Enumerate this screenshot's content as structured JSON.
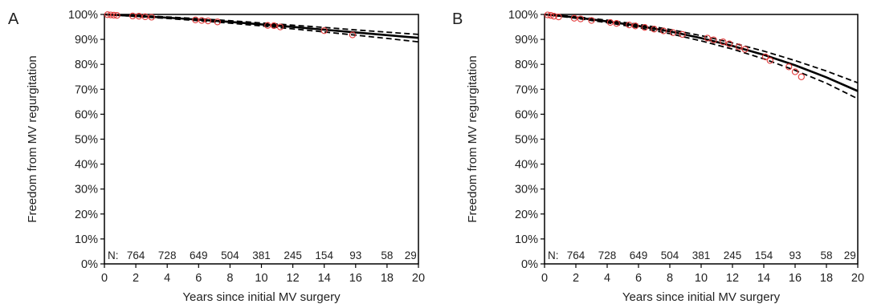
{
  "chart_data": [
    {
      "type": "line",
      "panel_label": "A",
      "xlabel": "Years since initial MV surgery",
      "ylabel": "Freedom from MV regurgitation",
      "xlim": [
        0,
        20
      ],
      "ylim": [
        0,
        100
      ],
      "x_ticks": [
        0,
        2,
        4,
        6,
        8,
        10,
        12,
        14,
        16,
        18,
        20
      ],
      "y_ticks": [
        "0%",
        "10%",
        "20%",
        "30%",
        "40%",
        "50%",
        "60%",
        "70%",
        "80%",
        "90%",
        "100%"
      ],
      "grid": false,
      "series": [
        {
          "style": "solid",
          "x": [
            0,
            2,
            4,
            6,
            8,
            10,
            12,
            14,
            16,
            18,
            20
          ],
          "y": [
            100,
            99.4,
            98.7,
            97.9,
            97.0,
            96.0,
            95.0,
            93.9,
            92.8,
            91.7,
            90.6
          ]
        },
        {
          "style": "dashed",
          "x": [
            0,
            2,
            4,
            6,
            8,
            10,
            12,
            14,
            16,
            18,
            20
          ],
          "y": [
            100,
            99.6,
            99.0,
            98.3,
            97.5,
            96.6,
            95.7,
            94.8,
            93.8,
            92.9,
            92.0
          ]
        },
        {
          "style": "dashed",
          "x": [
            0,
            2,
            4,
            6,
            8,
            10,
            12,
            14,
            16,
            18,
            20
          ],
          "y": [
            100,
            99.2,
            98.4,
            97.5,
            96.5,
            95.4,
            94.2,
            93.0,
            91.7,
            90.4,
            89.0
          ]
        }
      ],
      "events": {
        "x": [
          0.2,
          0.4,
          0.6,
          0.8,
          1.8,
          2.2,
          2.6,
          3.0,
          5.8,
          6.2,
          6.6,
          7.2,
          10.4,
          10.8,
          11.2,
          14.0,
          15.8
        ],
        "y": [
          99.9,
          99.8,
          99.7,
          99.6,
          99.4,
          99.3,
          99.1,
          98.9,
          97.8,
          97.6,
          97.4,
          97.0,
          95.6,
          95.5,
          95.0,
          93.5,
          91.8
        ]
      },
      "n_at_risk_label": "N:",
      "n_at_risk": [
        {
          "x": 2,
          "n": "764"
        },
        {
          "x": 4,
          "n": "728"
        },
        {
          "x": 6,
          "n": "649"
        },
        {
          "x": 8,
          "n": "504"
        },
        {
          "x": 10,
          "n": "381"
        },
        {
          "x": 12,
          "n": "245"
        },
        {
          "x": 14,
          "n": "154"
        },
        {
          "x": 16,
          "n": "93"
        },
        {
          "x": 18,
          "n": "58"
        },
        {
          "x": 19.5,
          "n": "29"
        }
      ]
    },
    {
      "type": "line",
      "panel_label": "B",
      "xlabel": "Years since initial MV surgery",
      "ylabel": "Freedom from MV regurgitation",
      "xlim": [
        0,
        20
      ],
      "ylim": [
        0,
        100
      ],
      "x_ticks": [
        0,
        2,
        4,
        6,
        8,
        10,
        12,
        14,
        16,
        18,
        20
      ],
      "y_ticks": [
        "0%",
        "10%",
        "20%",
        "30%",
        "40%",
        "50%",
        "60%",
        "70%",
        "80%",
        "90%",
        "100%"
      ],
      "grid": false,
      "series": [
        {
          "style": "solid",
          "x": [
            0,
            2,
            4,
            6,
            8,
            10,
            12,
            14,
            16,
            18,
            20
          ],
          "y": [
            100,
            98.8,
            97.2,
            95.4,
            93.2,
            90.5,
            87.4,
            83.8,
            79.6,
            74.8,
            69.3
          ]
        },
        {
          "style": "dashed",
          "x": [
            0,
            2,
            4,
            6,
            8,
            10,
            12,
            14,
            16,
            18,
            20
          ],
          "y": [
            100,
            99.1,
            97.7,
            96.0,
            94.0,
            91.5,
            88.6,
            85.3,
            81.5,
            77.3,
            72.6
          ]
        },
        {
          "style": "dashed",
          "x": [
            0,
            2,
            4,
            6,
            8,
            10,
            12,
            14,
            16,
            18,
            20
          ],
          "y": [
            100,
            98.5,
            96.7,
            94.7,
            92.3,
            89.4,
            86.1,
            82.2,
            77.6,
            72.4,
            66.2
          ]
        }
      ],
      "events": {
        "x": [
          0.2,
          0.4,
          0.6,
          0.9,
          1.9,
          2.3,
          3.0,
          4.2,
          4.6,
          5.4,
          5.8,
          6.4,
          7.0,
          7.6,
          8.2,
          8.8,
          10.4,
          10.8,
          11.4,
          11.8,
          12.4,
          12.8,
          14.1,
          14.4,
          15.6,
          16.0,
          16.4
        ],
        "y": [
          99.8,
          99.6,
          99.3,
          99.0,
          98.5,
          98.2,
          97.6,
          96.8,
          96.4,
          95.8,
          95.4,
          94.8,
          94.1,
          93.4,
          92.7,
          92.0,
          90.5,
          89.8,
          89.0,
          88.2,
          87.0,
          86.0,
          83.0,
          81.5,
          79.0,
          77.0,
          75.0
        ]
      },
      "n_at_risk_label": "N:",
      "n_at_risk": [
        {
          "x": 2,
          "n": "764"
        },
        {
          "x": 4,
          "n": "728"
        },
        {
          "x": 6,
          "n": "649"
        },
        {
          "x": 8,
          "n": "504"
        },
        {
          "x": 10,
          "n": "381"
        },
        {
          "x": 12,
          "n": "245"
        },
        {
          "x": 14,
          "n": "154"
        },
        {
          "x": 16,
          "n": "93"
        },
        {
          "x": 18,
          "n": "58"
        },
        {
          "x": 19.5,
          "n": "29"
        }
      ]
    }
  ]
}
